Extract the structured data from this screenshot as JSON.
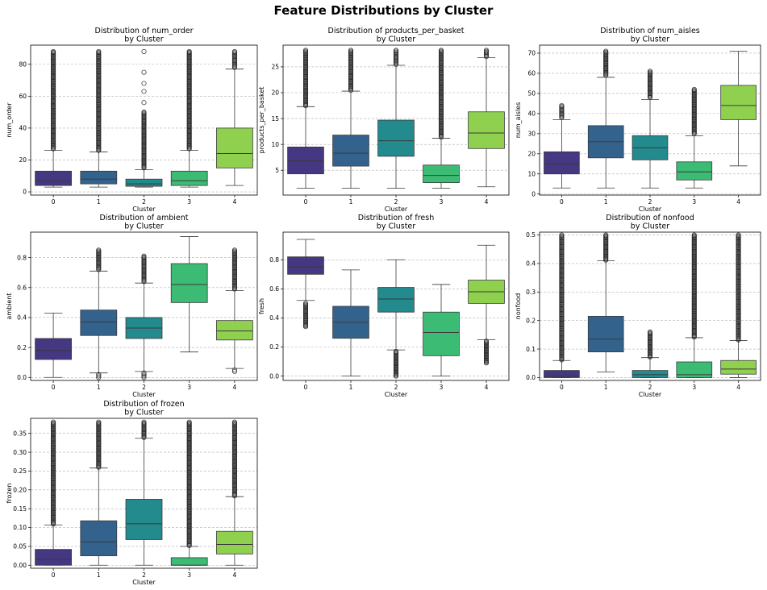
{
  "figure": {
    "title": "Feature Distributions by Cluster"
  },
  "palette": [
    "#453781",
    "#33638d",
    "#238a8d",
    "#3cbb75",
    "#8fd14f"
  ],
  "chart_data": [
    {
      "type": "box",
      "title": "Distribution of num_order\nby Cluster",
      "xlabel": "Cluster",
      "ylabel": "num_order",
      "categories": [
        "0",
        "1",
        "2",
        "3",
        "4"
      ],
      "ylim": [
        -2,
        92
      ],
      "yticks": [
        0,
        20,
        40,
        60,
        80
      ],
      "grid": true,
      "boxes": [
        {
          "q1": 4,
          "median": 7,
          "q3": 13,
          "whislo": 3,
          "whishi": 26,
          "fliers": {
            "from": 27,
            "to": 88,
            "dense": true
          }
        },
        {
          "q1": 5,
          "median": 8,
          "q3": 13,
          "whislo": 3,
          "whishi": 25,
          "fliers": {
            "from": 26,
            "to": 88,
            "dense": true
          }
        },
        {
          "q1": 3.5,
          "median": 5,
          "q3": 8,
          "whislo": 3,
          "whishi": 14,
          "fliers": {
            "from": 15,
            "to": 50,
            "dense": true,
            "extra": [
              56,
              63,
              68,
              75,
              88
            ]
          }
        },
        {
          "q1": 4,
          "median": 7,
          "q3": 13,
          "whislo": 3,
          "whishi": 26,
          "fliers": {
            "from": 27,
            "to": 88,
            "dense": true
          }
        },
        {
          "q1": 15,
          "median": 24,
          "q3": 40,
          "whislo": 4,
          "whishi": 77,
          "fliers": {
            "from": 78,
            "to": 88,
            "dense": true
          }
        }
      ]
    },
    {
      "type": "box",
      "title": "Distribution of products_per_basket\nby Cluster",
      "xlabel": "Cluster",
      "ylabel": "products_per_basket",
      "categories": [
        "0",
        "1",
        "2",
        "3",
        "4"
      ],
      "ylim": [
        0.2,
        29.2
      ],
      "yticks": [
        5,
        10,
        15,
        20,
        25
      ],
      "grid": true,
      "boxes": [
        {
          "q1": 4.3,
          "median": 6.8,
          "q3": 9.5,
          "whislo": 1.5,
          "whishi": 17.3,
          "fliers": {
            "from": 17.5,
            "to": 28.2,
            "dense": true
          }
        },
        {
          "q1": 5.8,
          "median": 8.3,
          "q3": 11.8,
          "whislo": 1.5,
          "whishi": 20.3,
          "fliers": {
            "from": 20.5,
            "to": 28.2,
            "dense": true
          }
        },
        {
          "q1": 7.7,
          "median": 10.7,
          "q3": 14.7,
          "whislo": 1.5,
          "whishi": 25.3,
          "fliers": {
            "from": 25.5,
            "to": 28.2,
            "dense": true
          }
        },
        {
          "q1": 2.6,
          "median": 4.0,
          "q3": 6.0,
          "whislo": 1.5,
          "whishi": 11.2,
          "fliers": {
            "from": 11.4,
            "to": 28.2,
            "dense": true
          }
        },
        {
          "q1": 9.2,
          "median": 12.2,
          "q3": 16.3,
          "whislo": 1.8,
          "whishi": 26.8,
          "fliers": {
            "from": 27.0,
            "to": 28.2,
            "dense": true
          }
        }
      ]
    },
    {
      "type": "box",
      "title": "Distribution of num_aisles\nby Cluster",
      "xlabel": "Cluster",
      "ylabel": "num_aisles",
      "categories": [
        "0",
        "1",
        "2",
        "3",
        "4"
      ],
      "ylim": [
        -0.5,
        74
      ],
      "yticks": [
        0,
        10,
        20,
        30,
        40,
        50,
        60,
        70
      ],
      "grid": true,
      "boxes": [
        {
          "q1": 10,
          "median": 15,
          "q3": 21,
          "whislo": 3,
          "whishi": 37,
          "fliers": {
            "from": 38,
            "to": 44,
            "dense": true
          }
        },
        {
          "q1": 18,
          "median": 26,
          "q3": 34,
          "whislo": 3,
          "whishi": 58,
          "fliers": {
            "from": 59,
            "to": 71,
            "dense": true
          }
        },
        {
          "q1": 17,
          "median": 23,
          "q3": 29,
          "whislo": 3,
          "whishi": 47,
          "fliers": {
            "from": 48,
            "to": 61,
            "dense": true
          }
        },
        {
          "q1": 7,
          "median": 11,
          "q3": 16,
          "whislo": 3,
          "whishi": 29,
          "fliers": {
            "from": 30,
            "to": 52,
            "dense": true
          }
        },
        {
          "q1": 37,
          "median": 44,
          "q3": 54,
          "whislo": 14,
          "whishi": 71,
          "fliers": null
        }
      ]
    },
    {
      "type": "box",
      "title": "Distribution of ambient\nby Cluster",
      "xlabel": "Cluster",
      "ylabel": "ambient",
      "categories": [
        "0",
        "1",
        "2",
        "3",
        "4"
      ],
      "ylim": [
        -0.02,
        0.97
      ],
      "yticks": [
        0.0,
        0.2,
        0.4,
        0.6,
        0.8
      ],
      "grid": true,
      "boxes": [
        {
          "q1": 0.12,
          "median": 0.18,
          "q3": 0.26,
          "whislo": 0.0,
          "whishi": 0.43,
          "fliers": null
        },
        {
          "q1": 0.28,
          "median": 0.37,
          "q3": 0.45,
          "whislo": 0.03,
          "whishi": 0.71,
          "fliers": {
            "from": 0.72,
            "to": 0.85,
            "dense": true,
            "extra": [
              0.0,
              0.01,
              0.02
            ]
          }
        },
        {
          "q1": 0.26,
          "median": 0.33,
          "q3": 0.4,
          "whislo": 0.04,
          "whishi": 0.63,
          "fliers": {
            "from": 0.64,
            "to": 0.81,
            "dense": true,
            "extra": [
              0.0,
              0.01,
              0.02,
              0.03
            ]
          }
        },
        {
          "q1": 0.5,
          "median": 0.62,
          "q3": 0.76,
          "whislo": 0.17,
          "whishi": 0.94,
          "fliers": null
        },
        {
          "q1": 0.25,
          "median": 0.31,
          "q3": 0.38,
          "whislo": 0.06,
          "whishi": 0.58,
          "fliers": {
            "from": 0.59,
            "to": 0.85,
            "dense": true,
            "extra": [
              0.04,
              0.05
            ]
          }
        }
      ]
    },
    {
      "type": "box",
      "title": "Distribution of fresh\nby Cluster",
      "xlabel": "Cluster",
      "ylabel": "fresh",
      "categories": [
        "0",
        "1",
        "2",
        "3",
        "4"
      ],
      "ylim": [
        -0.03,
        0.99
      ],
      "yticks": [
        0.0,
        0.2,
        0.4,
        0.6,
        0.8
      ],
      "grid": true,
      "boxes": [
        {
          "q1": 0.7,
          "median": 0.75,
          "q3": 0.82,
          "whislo": 0.52,
          "whishi": 0.94,
          "fliers": {
            "from": 0.34,
            "to": 0.5,
            "dense": true
          }
        },
        {
          "q1": 0.26,
          "median": 0.37,
          "q3": 0.48,
          "whislo": 0.0,
          "whishi": 0.73,
          "fliers": null
        },
        {
          "q1": 0.44,
          "median": 0.53,
          "q3": 0.61,
          "whislo": 0.18,
          "whishi": 0.8,
          "fliers": {
            "from": 0.0,
            "to": 0.17,
            "dense": true
          }
        },
        {
          "q1": 0.14,
          "median": 0.3,
          "q3": 0.44,
          "whislo": 0.0,
          "whishi": 0.63,
          "fliers": null
        },
        {
          "q1": 0.5,
          "median": 0.58,
          "q3": 0.66,
          "whislo": 0.25,
          "whishi": 0.9,
          "fliers": {
            "from": 0.09,
            "to": 0.24,
            "dense": true
          }
        }
      ]
    },
    {
      "type": "box",
      "title": "Distribution of nonfood\nby Cluster",
      "xlabel": "Cluster",
      "ylabel": "nonfood",
      "categories": [
        "0",
        "1",
        "2",
        "3",
        "4"
      ],
      "ylim": [
        -0.01,
        0.51
      ],
      "yticks": [
        0.0,
        0.1,
        0.2,
        0.3,
        0.4,
        0.5
      ],
      "grid": true,
      "boxes": [
        {
          "q1": 0.0,
          "median": 0.005,
          "q3": 0.025,
          "whislo": 0.0,
          "whishi": 0.06,
          "fliers": {
            "from": 0.062,
            "to": 0.5,
            "dense": true
          }
        },
        {
          "q1": 0.09,
          "median": 0.135,
          "q3": 0.215,
          "whislo": 0.02,
          "whishi": 0.41,
          "fliers": {
            "from": 0.412,
            "to": 0.5,
            "dense": true
          }
        },
        {
          "q1": 0.0,
          "median": 0.01,
          "q3": 0.025,
          "whislo": 0.0,
          "whishi": 0.07,
          "fliers": {
            "from": 0.072,
            "to": 0.16,
            "dense": true
          }
        },
        {
          "q1": 0.0,
          "median": 0.01,
          "q3": 0.055,
          "whislo": 0.0,
          "whishi": 0.14,
          "fliers": {
            "from": 0.142,
            "to": 0.5,
            "dense": true
          }
        },
        {
          "q1": 0.012,
          "median": 0.03,
          "q3": 0.06,
          "whislo": 0.0,
          "whishi": 0.13,
          "fliers": {
            "from": 0.132,
            "to": 0.5,
            "dense": true
          }
        }
      ]
    },
    {
      "type": "box",
      "title": "Distribution of frozen\nby Cluster",
      "xlabel": "Cluster",
      "ylabel": "frozen",
      "categories": [
        "0",
        "1",
        "2",
        "3",
        "4"
      ],
      "ylim": [
        -0.008,
        0.39
      ],
      "yticks": [
        0.0,
        0.05,
        0.1,
        0.15,
        0.2,
        0.25,
        0.3,
        0.35
      ],
      "ytick_labels": [
        "0.00",
        "0.05",
        "0.10",
        "0.15",
        "0.20",
        "0.25",
        "0.30",
        "0.35"
      ],
      "grid": true,
      "boxes": [
        {
          "q1": 0.0,
          "median": 0.015,
          "q3": 0.042,
          "whislo": 0.0,
          "whishi": 0.107,
          "fliers": {
            "from": 0.109,
            "to": 0.38,
            "dense": true
          }
        },
        {
          "q1": 0.025,
          "median": 0.062,
          "q3": 0.118,
          "whislo": 0.0,
          "whishi": 0.258,
          "fliers": {
            "from": 0.26,
            "to": 0.38,
            "dense": true
          }
        },
        {
          "q1": 0.068,
          "median": 0.11,
          "q3": 0.175,
          "whislo": 0.0,
          "whishi": 0.337,
          "fliers": {
            "from": 0.339,
            "to": 0.38,
            "dense": true
          }
        },
        {
          "q1": 0.0,
          "median": 0.0,
          "q3": 0.02,
          "whislo": 0.0,
          "whishi": 0.05,
          "fliers": {
            "from": 0.052,
            "to": 0.38,
            "dense": true
          }
        },
        {
          "q1": 0.03,
          "median": 0.055,
          "q3": 0.09,
          "whislo": 0.0,
          "whishi": 0.182,
          "fliers": {
            "from": 0.184,
            "to": 0.38,
            "dense": true
          }
        }
      ]
    }
  ]
}
